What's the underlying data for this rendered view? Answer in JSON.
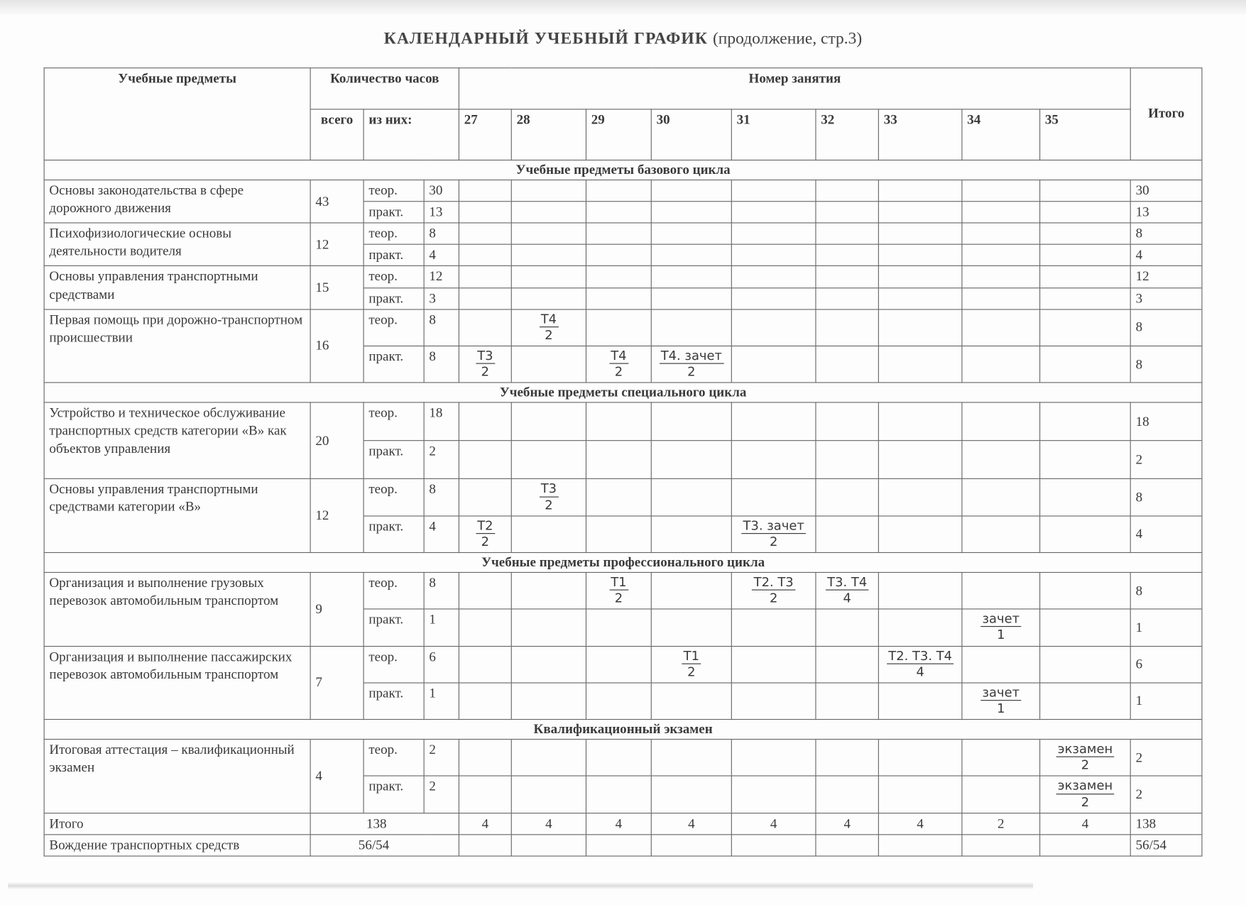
{
  "title": "КАЛЕНДАРНЫЙ  УЧЕБНЫЙ  ГРАФИК",
  "subtitle": "(продолжение, стр.3)",
  "header": {
    "subjects": "Учебные предметы",
    "hours": "Количество часов",
    "total_col": "всего",
    "of_which": "из них:",
    "lesson_no": "Номер занятия",
    "itogo": "Итого",
    "lessons": [
      "27",
      "28",
      "29",
      "30",
      "31",
      "32",
      "33",
      "34",
      "35"
    ]
  },
  "sections": [
    {
      "title": "Учебные предметы базового цикла",
      "subjects": [
        {
          "name": "Основы законодательства в сфере дорожного движения",
          "total": "43",
          "rows": [
            {
              "kind": "теор.",
              "hours": "30",
              "cells": [
                null,
                null,
                null,
                null,
                null,
                null,
                null,
                null,
                null
              ],
              "itogo": "30"
            },
            {
              "kind": "практ.",
              "hours": "13",
              "cells": [
                null,
                null,
                null,
                null,
                null,
                null,
                null,
                null,
                null
              ],
              "itogo": "13"
            }
          ]
        },
        {
          "name": "Психофизиологические основы деятельности водителя",
          "total": "12",
          "rows": [
            {
              "kind": "теор.",
              "hours": "8",
              "cells": [
                null,
                null,
                null,
                null,
                null,
                null,
                null,
                null,
                null
              ],
              "itogo": "8"
            },
            {
              "kind": "практ.",
              "hours": "4",
              "cells": [
                null,
                null,
                null,
                null,
                null,
                null,
                null,
                null,
                null
              ],
              "itogo": "4"
            }
          ]
        },
        {
          "name": "Основы управления транспортными средствами",
          "total": "15",
          "rows": [
            {
              "kind": "теор.",
              "hours": "12",
              "cells": [
                null,
                null,
                null,
                null,
                null,
                null,
                null,
                null,
                null
              ],
              "itogo": "12"
            },
            {
              "kind": "практ.",
              "hours": "3",
              "cells": [
                null,
                null,
                null,
                null,
                null,
                null,
                null,
                null,
                null
              ],
              "itogo": "3"
            }
          ]
        },
        {
          "name": "Первая помощь при дорожно-транспортном происшествии",
          "total": "16",
          "rows": [
            {
              "kind": "теор.",
              "hours": "8",
              "cells": [
                null,
                {
                  "n": "Т4",
                  "d": "2"
                },
                null,
                null,
                null,
                null,
                null,
                null,
                null
              ],
              "itogo": "8"
            },
            {
              "kind": "практ.",
              "hours": "8",
              "cells": [
                {
                  "n": "Т3",
                  "d": "2"
                },
                null,
                {
                  "n": "Т4",
                  "d": "2"
                },
                {
                  "n": "Т4. зачет",
                  "d": "2"
                },
                null,
                null,
                null,
                null,
                null
              ],
              "itogo": "8"
            }
          ]
        }
      ]
    },
    {
      "title": "Учебные предметы специального цикла",
      "subjects": [
        {
          "name": "Устройство и техническое обслуживание транспортных средств категории «В» как объектов управления",
          "total": "20",
          "rows": [
            {
              "kind": "теор.",
              "hours": "18",
              "cells": [
                null,
                null,
                null,
                null,
                null,
                null,
                null,
                null,
                null
              ],
              "itogo": "18"
            },
            {
              "kind": "практ.",
              "hours": "2",
              "cells": [
                null,
                null,
                null,
                null,
                null,
                null,
                null,
                null,
                null
              ],
              "itogo": "2"
            }
          ]
        },
        {
          "name": "Основы управления транспортными средствами категории «В»",
          "total": "12",
          "rows": [
            {
              "kind": "теор.",
              "hours": "8",
              "cells": [
                null,
                {
                  "n": "Т3",
                  "d": "2"
                },
                null,
                null,
                null,
                null,
                null,
                null,
                null
              ],
              "itogo": "8"
            },
            {
              "kind": "практ.",
              "hours": "4",
              "cells": [
                {
                  "n": "Т2",
                  "d": "2"
                },
                null,
                null,
                null,
                {
                  "n": "Т3. зачет",
                  "d": "2"
                },
                null,
                null,
                null,
                null
              ],
              "itogo": "4"
            }
          ]
        }
      ]
    },
    {
      "title": "Учебные предметы профессионального цикла",
      "subjects": [
        {
          "name": "Организация и выполнение грузовых перевозок автомобильным транспортом",
          "total": "9",
          "rows": [
            {
              "kind": "теор.",
              "hours": "8",
              "cells": [
                null,
                null,
                {
                  "n": "Т1",
                  "d": "2"
                },
                null,
                {
                  "n": "Т2. Т3",
                  "d": "2"
                },
                {
                  "n": "Т3. Т4",
                  "d": "4"
                },
                null,
                null,
                null
              ],
              "itogo": "8"
            },
            {
              "kind": "практ.",
              "hours": "1",
              "cells": [
                null,
                null,
                null,
                null,
                null,
                null,
                null,
                {
                  "n": "зачет",
                  "d": "1"
                },
                null
              ],
              "itogo": "1"
            }
          ]
        },
        {
          "name": "Организация и выполнение пассажирских перевозок автомобильным транспортом",
          "total": "7",
          "rows": [
            {
              "kind": "теор.",
              "hours": "6",
              "cells": [
                null,
                null,
                null,
                {
                  "n": "Т1",
                  "d": "2"
                },
                null,
                null,
                {
                  "n": "Т2. Т3. Т4",
                  "d": "4"
                },
                null,
                null
              ],
              "itogo": "6"
            },
            {
              "kind": "практ.",
              "hours": "1",
              "cells": [
                null,
                null,
                null,
                null,
                null,
                null,
                null,
                {
                  "n": "зачет",
                  "d": "1"
                },
                null
              ],
              "itogo": "1"
            }
          ]
        }
      ]
    },
    {
      "title": "Квалификационный экзамен",
      "subjects": [
        {
          "name": "Итоговая аттестация – квалификационный экзамен",
          "total": "4",
          "rows": [
            {
              "kind": "теор.",
              "hours": "2",
              "cells": [
                null,
                null,
                null,
                null,
                null,
                null,
                null,
                null,
                {
                  "n": "экзамен",
                  "d": "2"
                }
              ],
              "itogo": "2"
            },
            {
              "kind": "практ.",
              "hours": "2",
              "cells": [
                null,
                null,
                null,
                null,
                null,
                null,
                null,
                null,
                {
                  "n": "экзамен",
                  "d": "2"
                }
              ],
              "itogo": "2"
            }
          ]
        }
      ]
    }
  ],
  "totals": {
    "label": "Итого",
    "hours": "138",
    "lessons": [
      "4",
      "4",
      "4",
      "4",
      "4",
      "4",
      "4",
      "2",
      "4"
    ],
    "itogo": "138"
  },
  "driving": {
    "label": "Вождение транспортных средств",
    "hours": "56/54",
    "itogo": "56/54"
  }
}
